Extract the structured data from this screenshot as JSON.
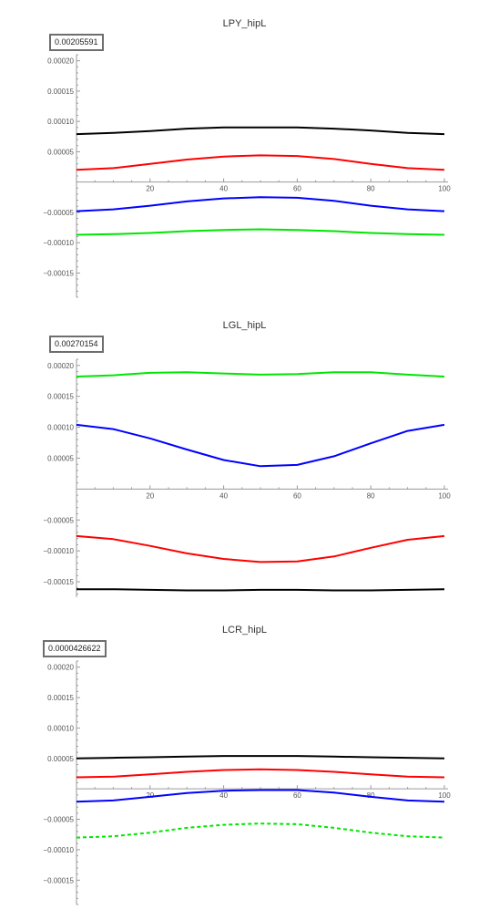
{
  "chart_data": [
    {
      "type": "line",
      "title": "LPY_hipL",
      "boxed_value": "0.00205591",
      "xlim": [
        0,
        100
      ],
      "ylim": [
        -0.00019,
        0.00021
      ],
      "x_ticks": [
        20,
        40,
        60,
        80,
        100
      ],
      "x_tick_labels": [
        "20",
        "40",
        "60",
        "80",
        "100"
      ],
      "y_ticks": [
        -0.00015,
        -0.0001,
        -5e-05,
        5e-05,
        0.0001,
        0.00015,
        0.0002
      ],
      "y_tick_labels": [
        "−0.00015",
        "−0.00010",
        "−0.00005",
        "0.00005",
        "0.00010",
        "0.00015",
        "0.00020"
      ],
      "series": [
        {
          "color": "#000000",
          "dashed": false,
          "x": [
            0,
            10,
            20,
            30,
            40,
            50,
            60,
            70,
            80,
            90,
            100
          ],
          "y": [
            7.9e-05,
            8.1e-05,
            8.4e-05,
            8.8e-05,
            9e-05,
            9e-05,
            9e-05,
            8.8e-05,
            8.5e-05,
            8.1e-05,
            7.9e-05
          ]
        },
        {
          "color": "#ff0000",
          "dashed": false,
          "x": [
            0,
            10,
            20,
            30,
            40,
            50,
            60,
            70,
            80,
            90,
            100
          ],
          "y": [
            2e-05,
            2.3e-05,
            3e-05,
            3.7e-05,
            4.2e-05,
            4.4e-05,
            4.3e-05,
            3.8e-05,
            3e-05,
            2.3e-05,
            2e-05
          ]
        },
        {
          "color": "#0000ff",
          "dashed": false,
          "x": [
            0,
            10,
            20,
            30,
            40,
            50,
            60,
            70,
            80,
            90,
            100
          ],
          "y": [
            -4.8e-05,
            -4.5e-05,
            -3.9e-05,
            -3.2e-05,
            -2.7e-05,
            -2.5e-05,
            -2.6e-05,
            -3.1e-05,
            -3.9e-05,
            -4.5e-05,
            -4.8e-05
          ]
        },
        {
          "color": "#00e600",
          "dashed": false,
          "x": [
            0,
            10,
            20,
            30,
            40,
            50,
            60,
            70,
            80,
            90,
            100
          ],
          "y": [
            -8.7e-05,
            -8.6e-05,
            -8.4e-05,
            -8.1e-05,
            -7.9e-05,
            -7.8e-05,
            -7.9e-05,
            -8.1e-05,
            -8.4e-05,
            -8.6e-05,
            -8.7e-05
          ]
        }
      ]
    },
    {
      "type": "line",
      "title": "LGL_hipL",
      "boxed_value": "0.00270154",
      "xlim": [
        0,
        100
      ],
      "ylim": [
        -0.000175,
        0.00021
      ],
      "x_ticks": [
        20,
        40,
        60,
        80,
        100
      ],
      "x_tick_labels": [
        "20",
        "40",
        "60",
        "80",
        "100"
      ],
      "y_ticks": [
        -0.00015,
        -0.0001,
        -5e-05,
        5e-05,
        0.0001,
        0.00015,
        0.0002
      ],
      "y_tick_labels": [
        "−0.00015",
        "−0.00010",
        "−0.00005",
        "0.00005",
        "0.00010",
        "0.00015",
        "0.00020"
      ],
      "series": [
        {
          "color": "#00e600",
          "dashed": false,
          "x": [
            0,
            10,
            20,
            30,
            40,
            50,
            60,
            70,
            80,
            90,
            100
          ],
          "y": [
            0.000182,
            0.000184,
            0.000188,
            0.000189,
            0.000187,
            0.000185,
            0.000186,
            0.000189,
            0.000189,
            0.000185,
            0.000182
          ]
        },
        {
          "color": "#0000ff",
          "dashed": false,
          "x": [
            0,
            10,
            20,
            30,
            40,
            50,
            60,
            70,
            80,
            90,
            100
          ],
          "y": [
            0.000104,
            9.7e-05,
            8.2e-05,
            6.4e-05,
            4.7e-05,
            3.7e-05,
            3.9e-05,
            5.3e-05,
            7.4e-05,
            9.4e-05,
            0.000104
          ]
        },
        {
          "color": "#ff0000",
          "dashed": false,
          "x": [
            0,
            10,
            20,
            30,
            40,
            50,
            60,
            70,
            80,
            90,
            100
          ],
          "y": [
            -7.6e-05,
            -8.1e-05,
            -9.2e-05,
            -0.000104,
            -0.000113,
            -0.000118,
            -0.000117,
            -0.000109,
            -9.5e-05,
            -8.2e-05,
            -7.6e-05
          ]
        },
        {
          "color": "#000000",
          "dashed": false,
          "x": [
            0,
            10,
            20,
            30,
            40,
            50,
            60,
            70,
            80,
            90,
            100
          ],
          "y": [
            -0.000162,
            -0.000162,
            -0.000163,
            -0.000164,
            -0.000164,
            -0.000163,
            -0.000163,
            -0.000164,
            -0.000164,
            -0.000163,
            -0.000162
          ]
        }
      ]
    },
    {
      "type": "line",
      "title": "LCR_hipL",
      "boxed_value": "0.0000426622",
      "xlim": [
        0,
        100
      ],
      "ylim": [
        -0.00019,
        0.00021
      ],
      "x_ticks": [
        20,
        40,
        60,
        80,
        100
      ],
      "x_tick_labels": [
        "20",
        "40",
        "60",
        "80",
        "100"
      ],
      "y_ticks": [
        -0.00015,
        -0.0001,
        -5e-05,
        5e-05,
        0.0001,
        0.00015,
        0.0002
      ],
      "y_tick_labels": [
        "−0.00015",
        "−0.00010",
        "−0.00005",
        "0.00005",
        "0.00010",
        "0.00015",
        "0.00020"
      ],
      "series": [
        {
          "color": "#000000",
          "dashed": false,
          "x": [
            0,
            10,
            20,
            30,
            40,
            50,
            60,
            70,
            80,
            90,
            100
          ],
          "y": [
            5e-05,
            5.1e-05,
            5.2e-05,
            5.3e-05,
            5.4e-05,
            5.4e-05,
            5.4e-05,
            5.3e-05,
            5.2e-05,
            5.1e-05,
            5e-05
          ]
        },
        {
          "color": "#ff0000",
          "dashed": false,
          "x": [
            0,
            10,
            20,
            30,
            40,
            50,
            60,
            70,
            80,
            90,
            100
          ],
          "y": [
            1.9e-05,
            2e-05,
            2.4e-05,
            2.8e-05,
            3.1e-05,
            3.2e-05,
            3.1e-05,
            2.8e-05,
            2.4e-05,
            2e-05,
            1.9e-05
          ]
        },
        {
          "color": "#0000ff",
          "dashed": false,
          "x": [
            0,
            10,
            20,
            30,
            40,
            50,
            60,
            70,
            80,
            90,
            100
          ],
          "y": [
            -2.1e-05,
            -1.9e-05,
            -1.3e-05,
            -7e-06,
            -3e-06,
            -2e-06,
            -2e-06,
            -6e-06,
            -1.3e-05,
            -1.9e-05,
            -2.1e-05
          ]
        },
        {
          "color": "#00e600",
          "dashed": true,
          "x": [
            0,
            10,
            20,
            30,
            40,
            50,
            60,
            70,
            80,
            90,
            100
          ],
          "y": [
            -8e-05,
            -7.8e-05,
            -7.2e-05,
            -6.4e-05,
            -5.9e-05,
            -5.7e-05,
            -5.8e-05,
            -6.4e-05,
            -7.2e-05,
            -7.8e-05,
            -8e-05
          ]
        }
      ]
    }
  ]
}
